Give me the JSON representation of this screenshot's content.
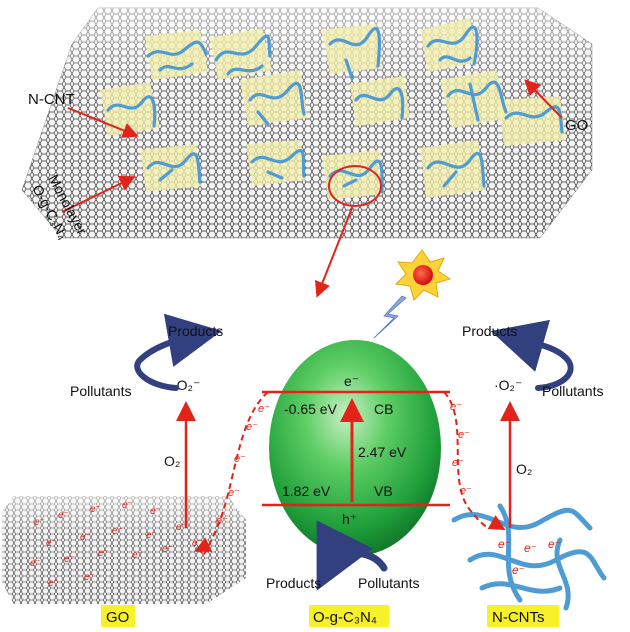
{
  "top_panel": {
    "label_ncnt": "N-CNT",
    "label_go": "GO",
    "label_monolayer_line1": "Monolayer",
    "label_monolayer_line2": "O-g-C₃N₄"
  },
  "mechanism": {
    "cb_label": "CB",
    "vb_label": "VB",
    "electron": "e⁻",
    "hole": "h⁺",
    "cb_potential": "-0.65 eV",
    "vb_potential": "1.82 eV",
    "band_gap": "2.47 eV",
    "left_products": "Products",
    "left_pollutants": "Pollutants",
    "left_o2": "O₂",
    "left_superoxide": "·O₂⁻",
    "right_products": "Products",
    "right_pollutants": "Pollutants",
    "right_o2": "O₂",
    "right_superoxide": "·O₂⁻",
    "bottom_products": "Products",
    "bottom_pollutants": "Pollutants",
    "small_electron": "e⁻"
  },
  "bottom_tags": {
    "go": "GO",
    "ogcn": "O-g-C₃N₄",
    "ncnts": "N-CNTs"
  },
  "colors": {
    "tag_yellow": "#f7f12a",
    "arrow_red": "#e2231a",
    "sphere_green": "#2fb64a",
    "cnt_blue": "#4f9bd4",
    "flake_yellow": "#f4eeaa",
    "curve_navy": "#33407f"
  }
}
